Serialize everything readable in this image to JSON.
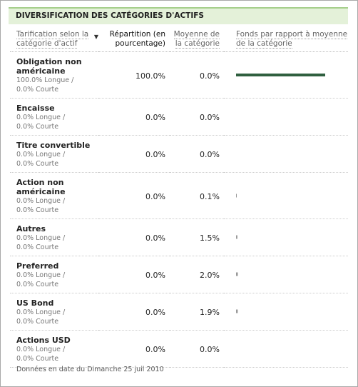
{
  "header": {
    "title": "DIVERSIFICATION DES CATÉGORIES D'ACTIFS"
  },
  "table": {
    "columns": [
      "Tarification selon la catégorie d'actif",
      "Répartition (en pourcentage)",
      "Moyenne de la catégorie",
      "Fonds par rapport à moyenne de la catégorie"
    ],
    "rows": [
      {
        "name": "Obligation non américaine",
        "long": "100.0% Longue /",
        "short": "0.0% Courte",
        "allocation": "100.0%",
        "category_average": "0.0%"
      },
      {
        "name": "Encaisse",
        "long": "0.0% Longue /",
        "short": "0.0% Courte",
        "allocation": "0.0%",
        "category_average": "0.0%"
      },
      {
        "name": "Titre convertible",
        "long": "0.0% Longue /",
        "short": "0.0% Courte",
        "allocation": "0.0%",
        "category_average": "0.0%"
      },
      {
        "name": "Action non américaine",
        "long": "0.0% Longue /",
        "short": "0.0% Courte",
        "allocation": "0.0%",
        "category_average": "0.1%"
      },
      {
        "name": "Autres",
        "long": "0.0% Longue /",
        "short": "0.0% Courte",
        "allocation": "0.0%",
        "category_average": "1.5%"
      },
      {
        "name": "Preferred",
        "long": "0.0% Longue /",
        "short": "0.0% Courte",
        "allocation": "0.0%",
        "category_average": "2.0%"
      },
      {
        "name": "US Bond",
        "long": "0.0% Longue /",
        "short": "0.0% Courte",
        "allocation": "0.0%",
        "category_average": "1.9%"
      },
      {
        "name": "Actions USD",
        "long": "0.0% Longue /",
        "short": "0.0% Courte",
        "allocation": "0.0%",
        "category_average": "0.0%"
      }
    ]
  },
  "footer": "Données en date du Dimanche 25 juil 2010"
}
